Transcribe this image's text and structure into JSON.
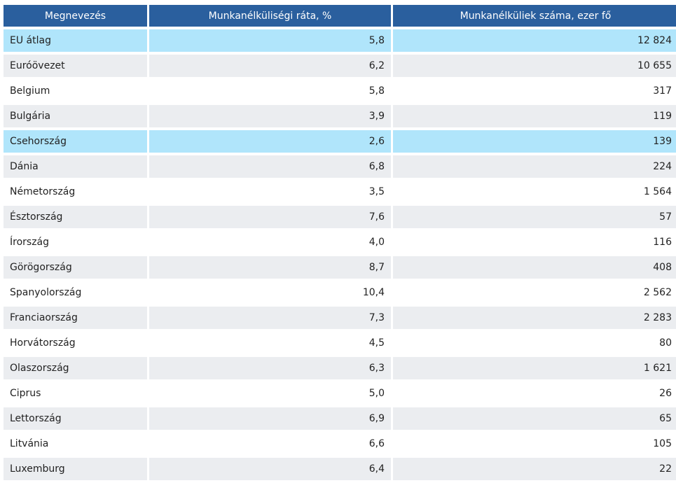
{
  "chart_data": {
    "type": "table",
    "columns": [
      "Megnevezés",
      "Munkanélküliségi ráta, %",
      "Munkanélküliek száma, ezer fő"
    ],
    "rows": [
      {
        "name": "EU átlag",
        "rate": "5,8",
        "count": "12 824",
        "highlight": true
      },
      {
        "name": "Euróövezet",
        "rate": "6,2",
        "count": "10 655",
        "highlight": false
      },
      {
        "name": "Belgium",
        "rate": "5,8",
        "count": "317",
        "highlight": false
      },
      {
        "name": "Bulgária",
        "rate": "3,9",
        "count": "119",
        "highlight": false
      },
      {
        "name": "Csehország",
        "rate": "2,6",
        "count": "139",
        "highlight": true
      },
      {
        "name": "Dánia",
        "rate": "6,8",
        "count": "224",
        "highlight": false
      },
      {
        "name": "Németország",
        "rate": "3,5",
        "count": "1 564",
        "highlight": false
      },
      {
        "name": "Észtország",
        "rate": "7,6",
        "count": "57",
        "highlight": false
      },
      {
        "name": "Írország",
        "rate": "4,0",
        "count": "116",
        "highlight": false
      },
      {
        "name": "Görögország",
        "rate": "8,7",
        "count": "408",
        "highlight": false
      },
      {
        "name": "Spanyolország",
        "rate": "10,4",
        "count": "2 562",
        "highlight": false
      },
      {
        "name": "Franciaország",
        "rate": "7,3",
        "count": "2 283",
        "highlight": false
      },
      {
        "name": "Horvátország",
        "rate": "4,5",
        "count": "80",
        "highlight": false
      },
      {
        "name": "Olaszország",
        "rate": "6,3",
        "count": "1 621",
        "highlight": false
      },
      {
        "name": "Ciprus",
        "rate": "5,0",
        "count": "26",
        "highlight": false
      },
      {
        "name": "Lettország",
        "rate": "6,9",
        "count": "65",
        "highlight": false
      },
      {
        "name": "Litvánia",
        "rate": "6,6",
        "count": "105",
        "highlight": false
      },
      {
        "name": "Luxemburg",
        "rate": "6,4",
        "count": "22",
        "highlight": false
      }
    ]
  },
  "colors": {
    "header_bg": "#2a5f9e",
    "header_text": "#ffffff",
    "row_highlight": "#b0e5fb",
    "row_alt": "#ebedf0",
    "row_plain": "#ffffff"
  }
}
